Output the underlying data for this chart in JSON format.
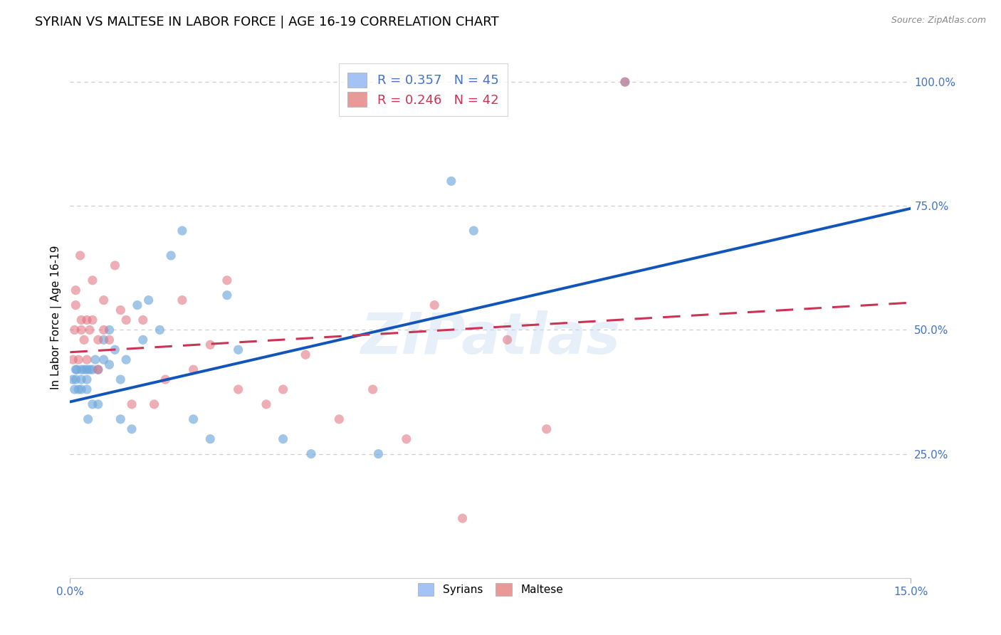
{
  "title": "SYRIAN VS MALTESE IN LABOR FORCE | AGE 16-19 CORRELATION CHART",
  "source": "Source: ZipAtlas.com",
  "ylabel": "In Labor Force | Age 16-19",
  "xlim": [
    0.0,
    0.15
  ],
  "ylim": [
    0.0,
    1.05
  ],
  "watermark": "ZIPatlas",
  "legend_blue_r": "R = 0.357",
  "legend_blue_n": "N = 45",
  "legend_pink_r": "R = 0.246",
  "legend_pink_n": "N = 42",
  "legend_blue_color": "#a4c2f4",
  "legend_pink_color": "#ea9999",
  "blue_scatter_color": "#6fa8dc",
  "pink_scatter_color": "#e06c7a",
  "blue_line_color": "#1155bb",
  "pink_line_color": "#cc3355",
  "blue_line_x": [
    0.0,
    0.15
  ],
  "blue_line_y": [
    0.355,
    0.745
  ],
  "pink_line_x": [
    0.0,
    0.15
  ],
  "pink_line_y": [
    0.455,
    0.555
  ],
  "grid_color": "#cccccc",
  "right_tick_color": "#4472c4",
  "title_fontsize": 13,
  "axis_label_fontsize": 11,
  "tick_fontsize": 11,
  "syrians_x": [
    0.0005,
    0.0008,
    0.001,
    0.001,
    0.0012,
    0.0015,
    0.002,
    0.002,
    0.002,
    0.0025,
    0.003,
    0.003,
    0.003,
    0.0032,
    0.0035,
    0.004,
    0.004,
    0.0045,
    0.005,
    0.005,
    0.006,
    0.006,
    0.007,
    0.007,
    0.008,
    0.009,
    0.009,
    0.01,
    0.011,
    0.012,
    0.013,
    0.014,
    0.016,
    0.018,
    0.02,
    0.022,
    0.025,
    0.028,
    0.03,
    0.038,
    0.043,
    0.055,
    0.068,
    0.072,
    0.099
  ],
  "syrians_y": [
    0.4,
    0.38,
    0.42,
    0.4,
    0.42,
    0.38,
    0.4,
    0.42,
    0.38,
    0.42,
    0.38,
    0.4,
    0.42,
    0.32,
    0.42,
    0.35,
    0.42,
    0.44,
    0.42,
    0.35,
    0.44,
    0.48,
    0.43,
    0.5,
    0.46,
    0.4,
    0.32,
    0.44,
    0.3,
    0.55,
    0.48,
    0.56,
    0.5,
    0.65,
    0.7,
    0.32,
    0.28,
    0.57,
    0.46,
    0.28,
    0.25,
    0.25,
    0.8,
    0.7,
    1.0
  ],
  "maltese_x": [
    0.0005,
    0.0008,
    0.001,
    0.001,
    0.0015,
    0.0018,
    0.002,
    0.002,
    0.0025,
    0.003,
    0.003,
    0.0035,
    0.004,
    0.004,
    0.005,
    0.005,
    0.006,
    0.006,
    0.007,
    0.008,
    0.009,
    0.01,
    0.011,
    0.013,
    0.015,
    0.017,
    0.02,
    0.022,
    0.025,
    0.028,
    0.03,
    0.035,
    0.038,
    0.042,
    0.048,
    0.054,
    0.06,
    0.065,
    0.07,
    0.078,
    0.085,
    0.099
  ],
  "maltese_y": [
    0.44,
    0.5,
    0.55,
    0.58,
    0.44,
    0.65,
    0.52,
    0.5,
    0.48,
    0.52,
    0.44,
    0.5,
    0.52,
    0.6,
    0.48,
    0.42,
    0.5,
    0.56,
    0.48,
    0.63,
    0.54,
    0.52,
    0.35,
    0.52,
    0.35,
    0.4,
    0.56,
    0.42,
    0.47,
    0.6,
    0.38,
    0.35,
    0.38,
    0.45,
    0.32,
    0.38,
    0.28,
    0.55,
    0.12,
    0.48,
    0.3,
    1.0
  ]
}
